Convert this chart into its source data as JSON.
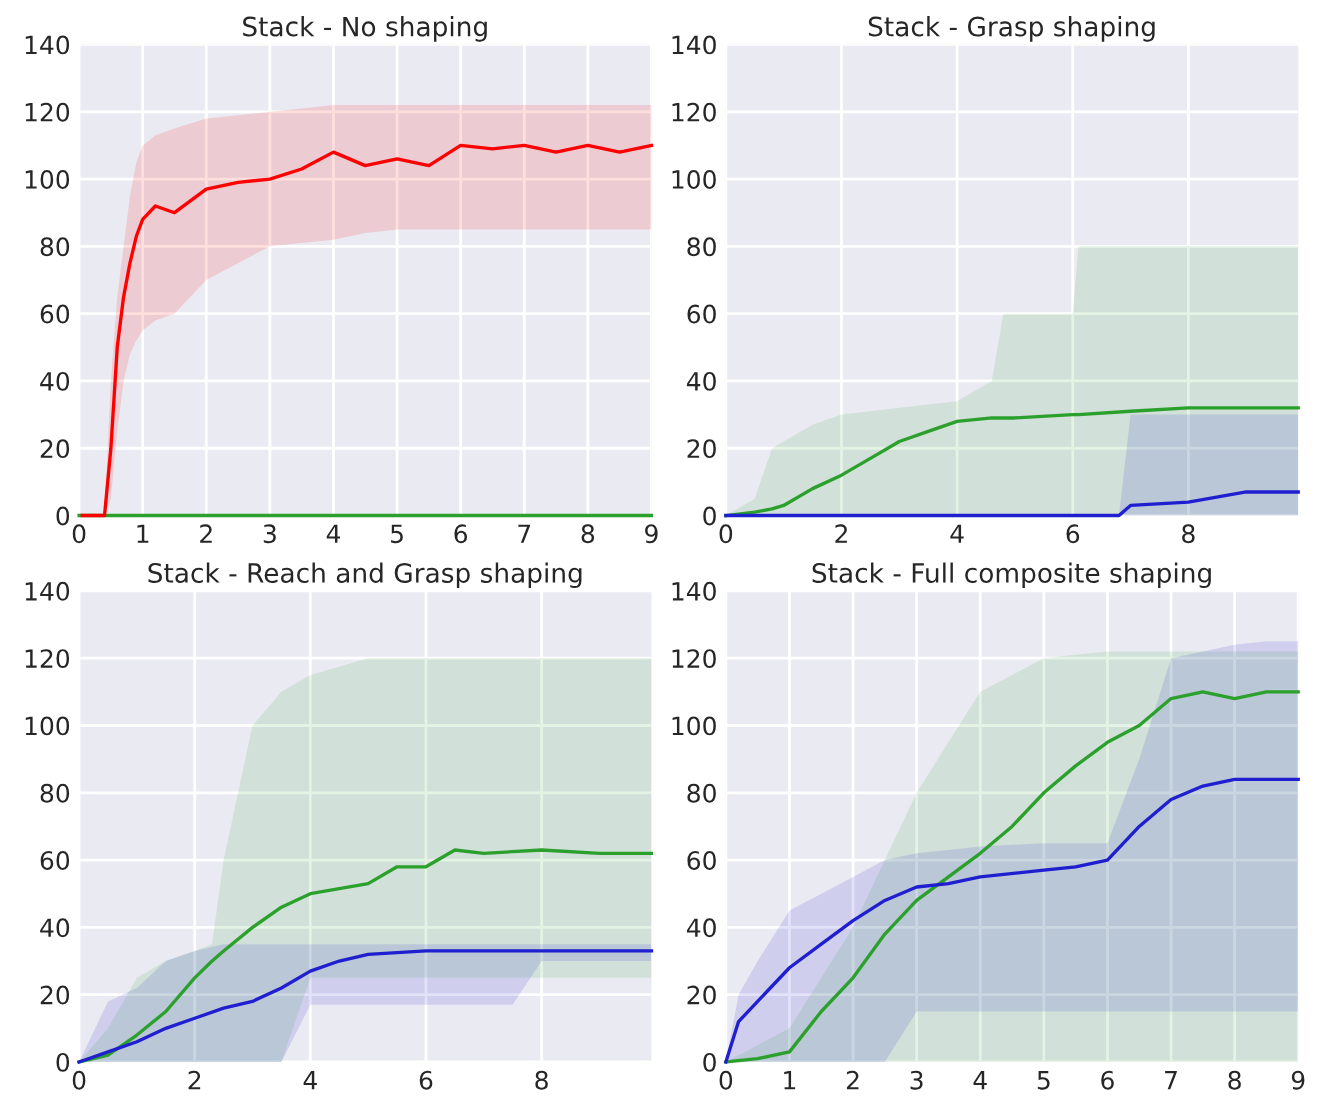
{
  "chart_data": [
    {
      "type": "line",
      "title": "Stack - No shaping",
      "xlim": [
        0,
        9
      ],
      "xticks": [
        0,
        1,
        2,
        3,
        4,
        5,
        6,
        7,
        8,
        9
      ],
      "ylim": [
        0,
        140
      ],
      "yticks": [
        0,
        20,
        40,
        60,
        80,
        100,
        120,
        140
      ],
      "grid": true,
      "legend": false,
      "series": [
        {
          "color": "#2ca02c",
          "x": [
            0,
            9
          ],
          "values": [
            0,
            0
          ]
        },
        {
          "color": "#ff0000",
          "x": [
            0.05,
            0.4,
            0.5,
            0.6,
            0.7,
            0.8,
            0.9,
            1.0,
            1.2,
            1.5,
            2,
            2.5,
            3,
            3.5,
            4,
            4.5,
            5,
            5.5,
            6,
            6.5,
            7,
            7.5,
            8,
            8.5,
            9
          ],
          "values": [
            0,
            0,
            20,
            50,
            65,
            75,
            83,
            88,
            92,
            90,
            97,
            99,
            100,
            103,
            108,
            104,
            106,
            104,
            110,
            109,
            110,
            108,
            110,
            108,
            110
          ],
          "lower": [
            0,
            0,
            5,
            25,
            40,
            48,
            52,
            55,
            58,
            60,
            70,
            75,
            80,
            81,
            82,
            84,
            85,
            85,
            85,
            85,
            85,
            85,
            85,
            85,
            85
          ],
          "upper": [
            0,
            0,
            40,
            65,
            80,
            95,
            105,
            110,
            113,
            115,
            118,
            119,
            120,
            121,
            122,
            122,
            122,
            122,
            122,
            122,
            122,
            122,
            122,
            122,
            122
          ]
        }
      ]
    },
    {
      "type": "line",
      "title": "Stack - Grasp shaping",
      "xlim": [
        0,
        9.9
      ],
      "xticks": [
        0,
        2,
        4,
        6,
        8
      ],
      "ylim": [
        0,
        140
      ],
      "yticks": [
        0,
        20,
        40,
        60,
        80,
        100,
        120,
        140
      ],
      "grid": true,
      "legend": false,
      "series": [
        {
          "color": "#2ca02c",
          "x": [
            0,
            0.5,
            0.8,
            1,
            1.5,
            2,
            2.5,
            3,
            3.5,
            4,
            4.6,
            4.8,
            5,
            6,
            6.1,
            7,
            8,
            9,
            9.9
          ],
          "values": [
            0,
            1,
            2,
            3,
            8,
            12,
            17,
            22,
            25,
            28,
            29,
            29,
            29,
            30,
            30,
            31,
            32,
            32,
            32
          ],
          "lower": [
            0,
            0,
            0,
            0,
            0,
            0,
            0,
            0,
            0,
            0,
            0,
            0,
            0,
            0,
            0,
            0,
            0,
            0,
            0
          ],
          "upper": [
            0,
            5,
            20,
            22,
            27,
            30,
            31,
            32,
            33,
            34,
            40,
            60,
            60,
            60,
            80,
            80,
            80,
            80,
            80
          ]
        },
        {
          "color": "#1f1fd0",
          "x": [
            0,
            6.8,
            7,
            8,
            9,
            9.9
          ],
          "values": [
            0,
            0,
            3,
            4,
            7,
            7
          ],
          "lower": [
            0,
            0,
            0,
            0,
            0,
            0
          ],
          "upper": [
            0,
            0,
            30,
            30,
            30,
            30
          ]
        }
      ]
    },
    {
      "type": "line",
      "title": "Stack - Reach and Grasp shaping",
      "xlim": [
        0,
        9.9
      ],
      "xticks": [
        0,
        2,
        4,
        6,
        8
      ],
      "ylim": [
        0,
        140
      ],
      "yticks": [
        0,
        20,
        40,
        60,
        80,
        100,
        120,
        140
      ],
      "grid": true,
      "legend": false,
      "series": [
        {
          "color": "#2ca02c",
          "x": [
            0,
            0.5,
            1,
            1.5,
            2,
            2.3,
            2.5,
            3,
            3.5,
            4,
            5,
            5.5,
            6,
            6.5,
            7,
            8,
            9,
            9.9
          ],
          "values": [
            0,
            2,
            8,
            15,
            25,
            30,
            33,
            40,
            46,
            50,
            53,
            58,
            58,
            63,
            62,
            63,
            62,
            62
          ],
          "lower": [
            0,
            0,
            0,
            0,
            0,
            0,
            0,
            0,
            0,
            25,
            25,
            25,
            25,
            25,
            25,
            25,
            25,
            25
          ],
          "upper": [
            0,
            10,
            25,
            30,
            33,
            35,
            60,
            100,
            110,
            115,
            120,
            120,
            120,
            120,
            120,
            120,
            120,
            120
          ]
        },
        {
          "color": "#1f1fd0",
          "x": [
            0,
            0.5,
            1,
            1.5,
            2,
            2.5,
            3,
            3.5,
            4,
            4.5,
            5,
            6,
            7.5,
            8,
            9.9
          ],
          "values": [
            0,
            3,
            6,
            10,
            13,
            16,
            18,
            22,
            27,
            30,
            32,
            33,
            33,
            33,
            33
          ],
          "lower": [
            0,
            0,
            0,
            0,
            0,
            0,
            0,
            0,
            17,
            17,
            17,
            17,
            17,
            30,
            30
          ],
          "upper": [
            0,
            18,
            22,
            30,
            33,
            35,
            35,
            35,
            35,
            35,
            35,
            35,
            35,
            35,
            35
          ]
        }
      ]
    },
    {
      "type": "line",
      "title": "Stack - Full composite shaping",
      "xlim": [
        0,
        9
      ],
      "xticks": [
        0,
        1,
        2,
        3,
        4,
        5,
        6,
        7,
        8,
        9
      ],
      "ylim": [
        0,
        140
      ],
      "yticks": [
        0,
        20,
        40,
        60,
        80,
        100,
        120,
        140
      ],
      "grid": true,
      "legend": false,
      "series": [
        {
          "color": "#2ca02c",
          "x": [
            0,
            0.5,
            1,
            1.5,
            2,
            2.5,
            3,
            3.5,
            4,
            4.5,
            5,
            5.5,
            6,
            6.5,
            7,
            7.5,
            8,
            8.5,
            9
          ],
          "values": [
            0,
            1,
            3,
            15,
            25,
            38,
            48,
            55,
            62,
            70,
            80,
            88,
            95,
            100,
            108,
            110,
            108,
            110,
            110
          ],
          "lower": [
            0,
            0,
            0,
            0,
            0,
            0,
            0,
            0,
            0,
            0,
            0,
            0,
            0,
            0,
            0,
            0,
            0,
            0,
            0
          ],
          "upper": [
            0,
            5,
            10,
            25,
            40,
            60,
            80,
            95,
            110,
            115,
            120,
            121,
            122,
            122,
            122,
            122,
            122,
            122,
            122
          ]
        },
        {
          "color": "#1f1fd0",
          "x": [
            0,
            0.2,
            0.5,
            1,
            1.5,
            2,
            2.5,
            3,
            3.5,
            4,
            5,
            5.5,
            6,
            6.5,
            7,
            7.5,
            8,
            8.5,
            9
          ],
          "values": [
            0,
            12,
            18,
            28,
            35,
            42,
            48,
            52,
            53,
            55,
            57,
            58,
            60,
            70,
            78,
            82,
            84,
            84,
            84
          ],
          "lower": [
            0,
            0,
            0,
            0,
            0,
            0,
            0,
            15,
            15,
            15,
            15,
            15,
            15,
            15,
            15,
            15,
            15,
            15,
            15
          ],
          "upper": [
            0,
            20,
            30,
            45,
            50,
            55,
            60,
            62,
            63,
            64,
            65,
            65,
            65,
            90,
            120,
            122,
            124,
            125,
            125
          ]
        }
      ]
    }
  ]
}
